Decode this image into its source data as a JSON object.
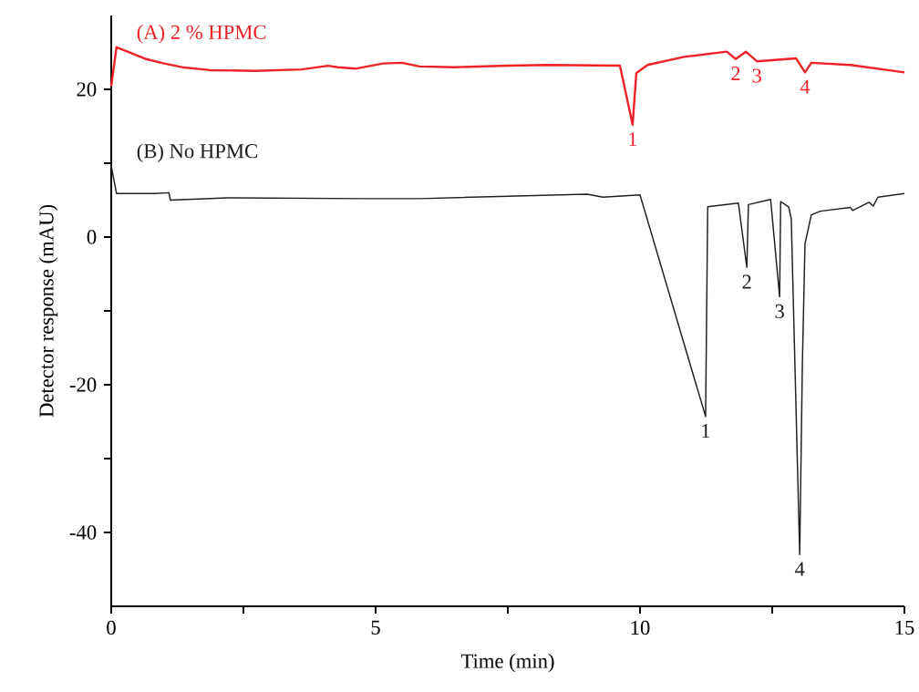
{
  "chart_data": {
    "type": "line",
    "xlabel": "Time (min)",
    "ylabel": "Detector response (mAU)",
    "xlim": [
      0,
      15
    ],
    "ylim": [
      -50,
      30
    ],
    "xticks": [
      0,
      {
        "value": 2.5,
        "label": null
      },
      5,
      {
        "value": 7.5,
        "label": null
      },
      10,
      {
        "value": 12.5,
        "label": null
      },
      15
    ],
    "yticks": [
      -40,
      {
        "value": -30,
        "label": null
      },
      -20,
      {
        "value": -10,
        "label": null
      },
      0,
      {
        "value": 10,
        "label": null
      },
      20
    ],
    "marker": "none",
    "line_style": "solid",
    "series": [
      {
        "name": "(A) 2 % HPMC",
        "color": "#ee2228",
        "x": [
          0,
          0.1,
          0.31,
          0.66,
          1.0,
          1.34,
          1.86,
          2.72,
          3.6,
          4.1,
          4.28,
          4.62,
          5.14,
          5.5,
          5.83,
          6.5,
          7.5,
          8.24,
          9.62,
          9.86,
          9.93,
          10.14,
          10.83,
          11.64,
          11.81,
          12.0,
          12.21,
          12.95,
          13.12,
          13.24,
          13.98,
          15
        ],
        "values": [
          20.4,
          25.7,
          25.1,
          24.1,
          23.5,
          23.0,
          22.6,
          22.5,
          22.7,
          23.2,
          23.0,
          22.8,
          23.5,
          23.6,
          23.1,
          23.0,
          23.2,
          23.3,
          23.2,
          15.2,
          22.2,
          23.3,
          24.4,
          25.1,
          24.1,
          25.1,
          23.8,
          24.2,
          22.3,
          23.6,
          23.3,
          22.3
        ]
      },
      {
        "name": "(B) No HPMC",
        "color": "#231f20",
        "x": [
          0,
          0.1,
          0.83,
          1.09,
          1.12,
          2.2,
          4.8,
          5.83,
          9.0,
          9.3,
          10.0,
          11.24,
          11.28,
          11.86,
          12.02,
          12.05,
          12.47,
          12.64,
          12.66,
          12.81,
          12.86,
          13.02,
          13.07,
          13.12,
          13.24,
          13.41,
          13.98,
          14.02,
          14.33,
          14.41,
          14.5,
          15
        ],
        "values": [
          9.6,
          5.9,
          5.9,
          6.0,
          5.0,
          5.3,
          5.2,
          5.2,
          5.8,
          5.4,
          5.7,
          -24.3,
          4.1,
          4.6,
          -4.1,
          4.4,
          5.1,
          -8.1,
          4.8,
          4.1,
          2.5,
          -43.0,
          -17.3,
          -0.9,
          3.0,
          3.5,
          4.0,
          3.6,
          4.7,
          4.2,
          5.4,
          5.9
        ]
      }
    ],
    "annotations": [
      {
        "text": "1",
        "x": 9.86,
        "y": 15.2
      },
      {
        "text": "2",
        "x": 11.81,
        "y": 24.1
      },
      {
        "text": "3",
        "x": 12.21,
        "y": 23.8
      },
      {
        "text": "4",
        "x": 13.12,
        "y": 22.3
      },
      {
        "text": "1",
        "x": 11.24,
        "y": -24.3
      },
      {
        "text": "2",
        "x": 12.02,
        "y": -4.1
      },
      {
        "text": "3",
        "x": 12.64,
        "y": -8.1
      },
      {
        "text": "4",
        "x": 13.02,
        "y": -43.0
      }
    ]
  }
}
